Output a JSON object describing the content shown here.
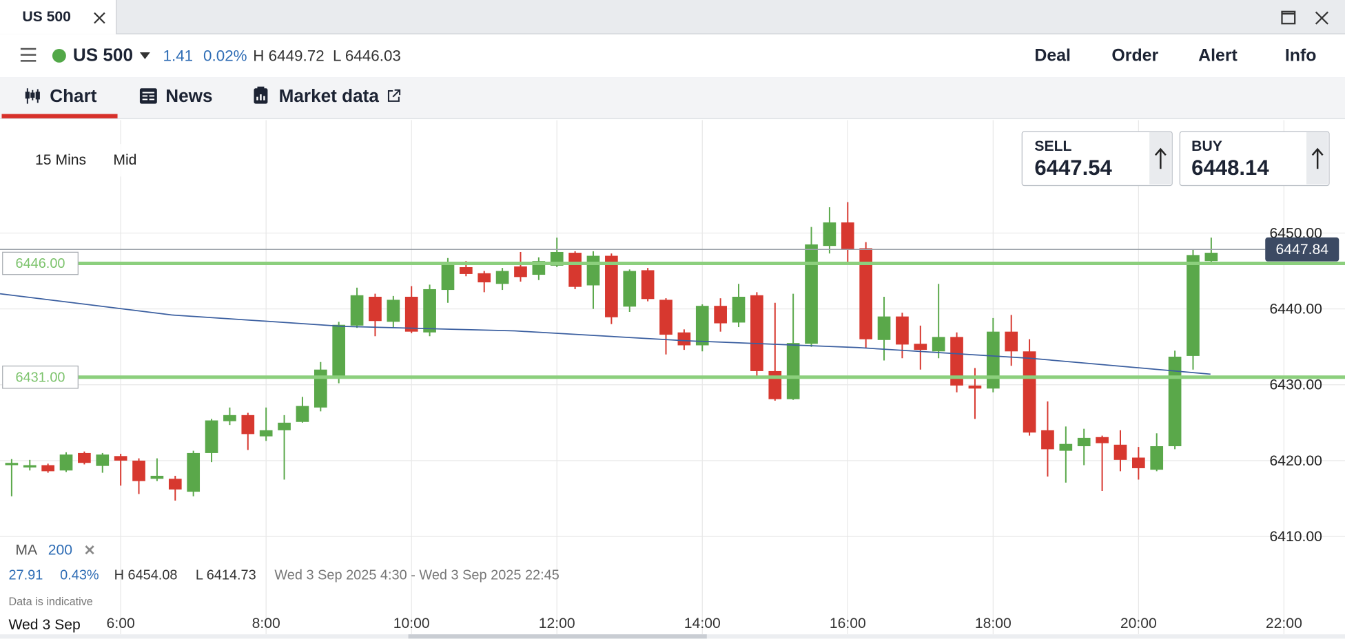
{
  "window_tab": "US 500",
  "header": {
    "instrument": "US 500",
    "change": "1.41",
    "change_pct": "0.02%",
    "high": "H 6449.72",
    "low": "L 6446.03",
    "actions": [
      "Deal",
      "Order",
      "Alert",
      "Info"
    ]
  },
  "tabs": [
    "Chart",
    "News",
    "Market data"
  ],
  "chart_settings": {
    "interval": "15 Mins",
    "price_type": "Mid"
  },
  "quote": {
    "sell_label": "SELL",
    "sell": "6447.54",
    "buy_label": "BUY",
    "buy": "6448.14"
  },
  "summary": {
    "change": "27.91",
    "change_pct": "0.43%",
    "high": "H 6454.08",
    "low": "L 6414.73",
    "range": "Wed 3 Sep 2025 4:30 - Wed 3 Sep 2025 22:45",
    "note": "Data is indicative"
  },
  "chart_data": {
    "type": "candlestick",
    "x_date_label": "Wed 3 Sep",
    "up_color": "#5aa84a",
    "down_color": "#d7382f",
    "grid": true,
    "xlim": [
      4.34,
      22.84
    ],
    "xticks": [
      {
        "value": 6,
        "label": "6:00"
      },
      {
        "value": 8,
        "label": "8:00"
      },
      {
        "value": 10,
        "label": "10:00"
      },
      {
        "value": 12,
        "label": "12:00"
      },
      {
        "value": 14,
        "label": "14:00"
      },
      {
        "value": 16,
        "label": "16:00"
      },
      {
        "value": 18,
        "label": "18:00"
      },
      {
        "value": 20,
        "label": "20:00"
      },
      {
        "value": 22,
        "label": "22:00"
      }
    ],
    "ylim": [
      6397.1,
      6464.9
    ],
    "yticks": [
      {
        "value": 6410,
        "label": "6410.00"
      },
      {
        "value": 6420,
        "label": "6420.00"
      },
      {
        "value": 6430,
        "label": "6430.00"
      },
      {
        "value": 6440,
        "label": "6440.00"
      },
      {
        "value": 6450,
        "label": "6450.00"
      }
    ],
    "x": [
      4.5,
      4.75,
      5,
      5.25,
      5.5,
      5.75,
      6,
      6.25,
      6.5,
      6.75,
      7,
      7.25,
      7.5,
      7.75,
      8,
      8.25,
      8.5,
      8.75,
      9,
      9.25,
      9.5,
      9.75,
      10,
      10.25,
      10.5,
      10.75,
      11,
      11.25,
      11.5,
      11.75,
      12,
      12.25,
      12.5,
      12.75,
      13,
      13.25,
      13.5,
      13.75,
      14,
      14.25,
      14.5,
      14.75,
      15,
      15.25,
      15.5,
      15.75,
      16,
      16.25,
      16.5,
      16.75,
      17,
      17.25,
      17.5,
      17.75,
      18,
      18.25,
      18.5,
      18.75,
      19,
      19.25,
      19.5,
      19.75,
      20,
      20.25,
      20.5,
      20.75,
      21
    ],
    "open": [
      6419.4,
      6419.1,
      6419.4,
      6418.7,
      6421.0,
      6419.3,
      6420.6,
      6420.0,
      6417.6,
      6417.6,
      6415.9,
      6421.0,
      6425.2,
      6426.0,
      6423.2,
      6424.0,
      6425.1,
      6427.0,
      6431.2,
      6437.8,
      6441.6,
      6438.3,
      6441.6,
      6436.9,
      6442.5,
      6445.5,
      6444.7,
      6443.3,
      6445.6,
      6444.5,
      6445.7,
      6447.4,
      6443.1,
      6447.0,
      6440.3,
      6445.1,
      6441.2,
      6436.9,
      6435.2,
      6440.4,
      6438.2,
      6441.8,
      6431.8,
      6428.1,
      6435.4,
      6448.3,
      6451.4,
      6448.0,
      6435.9,
      6439.0,
      6435.4,
      6434.4,
      6436.3,
      6429.9,
      6429.5,
      6437.0,
      6434.4,
      6424.0,
      6421.3,
      6421.9,
      6423.1,
      6422.1,
      6420.4,
      6418.8,
      6421.9,
      6433.8,
      6446.3
    ],
    "high": [
      6420.2,
      6420.1,
      6419.6,
      6421.1,
      6421.2,
      6421.0,
      6420.9,
      6420.3,
      6420.3,
      6418.0,
      6421.3,
      6425.5,
      6427.0,
      6426.3,
      6427.0,
      6426.0,
      6428.4,
      6433.0,
      6438.3,
      6442.8,
      6442.0,
      6441.7,
      6443.0,
      6443.2,
      6446.7,
      6446.3,
      6445.0,
      6445.4,
      6447.5,
      6446.8,
      6449.4,
      6447.6,
      6447.6,
      6447.3,
      6445.2,
      6445.4,
      6441.4,
      6437.3,
      6440.6,
      6441.4,
      6443.3,
      6442.2,
      6440.8,
      6442.0,
      6450.8,
      6453.4,
      6454.08,
      6448.8,
      6441.6,
      6439.5,
      6437.8,
      6443.3,
      6436.9,
      6432.2,
      6438.8,
      6439.2,
      6436.0,
      6427.8,
      6424.5,
      6424.2,
      6423.3,
      6424.0,
      6421.8,
      6423.6,
      6434.5,
      6447.9,
      6449.4
    ],
    "low": [
      6415.3,
      6418.7,
      6418.4,
      6418.5,
      6419.5,
      6418.4,
      6416.7,
      6415.6,
      6417.3,
      6414.73,
      6415.3,
      6419.8,
      6424.7,
      6421.4,
      6422.6,
      6417.5,
      6425.0,
      6426.5,
      6430.2,
      6437.5,
      6436.4,
      6437.5,
      6436.8,
      6436.4,
      6440.8,
      6444.3,
      6442.2,
      6442.5,
      6443.6,
      6443.8,
      6445.5,
      6442.6,
      6440.0,
      6438.0,
      6439.6,
      6441.0,
      6434.0,
      6434.6,
      6434.4,
      6437.0,
      6437.6,
      6430.8,
      6427.9,
      6428.0,
      6435.0,
      6447.3,
      6446.2,
      6434.8,
      6433.2,
      6433.5,
      6432.0,
      6433.5,
      6429.0,
      6425.5,
      6429.0,
      6432.5,
      6423.3,
      6417.9,
      6417.1,
      6419.4,
      6416.0,
      6418.6,
      6417.5,
      6418.6,
      6421.5,
      6432.0,
      6446.2
    ],
    "close": [
      6419.7,
      6419.4,
      6418.6,
      6420.8,
      6419.7,
      6420.8,
      6420.0,
      6417.3,
      6418.0,
      6416.2,
      6421.0,
      6425.3,
      6426.0,
      6423.5,
      6424.0,
      6425.0,
      6427.2,
      6432.0,
      6437.9,
      6441.8,
      6438.4,
      6441.2,
      6437.0,
      6442.6,
      6445.8,
      6444.6,
      6443.5,
      6445.0,
      6444.2,
      6446.3,
      6447.5,
      6442.9,
      6447.0,
      6438.9,
      6445.0,
      6441.3,
      6436.6,
      6435.2,
      6440.4,
      6438.1,
      6441.6,
      6431.8,
      6428.1,
      6435.5,
      6448.5,
      6451.4,
      6447.8,
      6436.0,
      6439.0,
      6435.3,
      6434.6,
      6436.3,
      6429.9,
      6429.5,
      6437.0,
      6434.4,
      6423.7,
      6421.5,
      6422.2,
      6423.0,
      6422.3,
      6420.1,
      6419.0,
      6421.9,
      6433.7,
      6447.1,
      6447.4
    ],
    "ma": {
      "name": "MA",
      "period": 200,
      "color": "#3b5fa0",
      "x": [
        4.34,
        6.7,
        9.06,
        11.42,
        13.78,
        16.14,
        18.5,
        20.99
      ],
      "values": [
        6442.0,
        6439.2,
        6437.7,
        6437.1,
        6435.8,
        6434.9,
        6433.5,
        6431.4
      ]
    },
    "level_color": "#8ccf7d",
    "levels": [
      {
        "value": 6446,
        "label": "6446.00"
      },
      {
        "value": 6431,
        "label": "6431.00"
      }
    ],
    "current_price": {
      "value": 6447.84,
      "label": "6447.84"
    },
    "price_color": "#3c4a63"
  }
}
